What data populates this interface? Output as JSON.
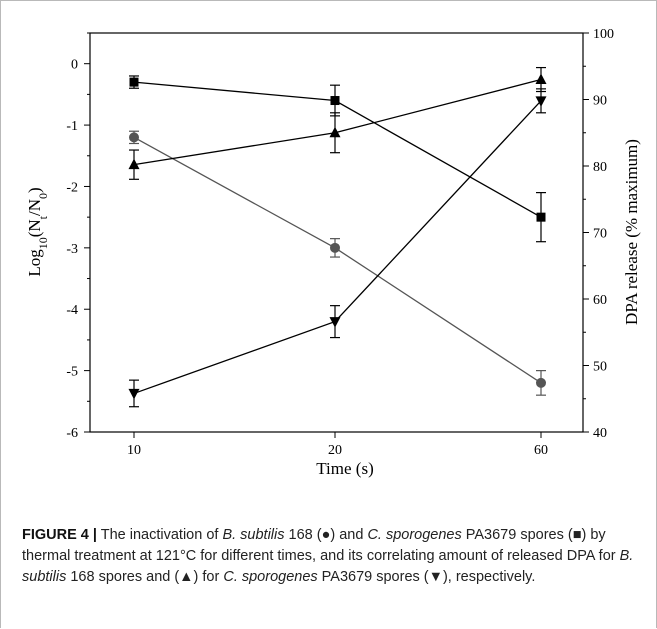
{
  "chart_data": {
    "type": "line",
    "categories": [
      "10",
      "20",
      "60"
    ],
    "xlabel": "Time (s)",
    "ylabel_left": "Log10(Nt/N0)",
    "ylabel_right": "DPA release (% maximum)",
    "ylim_left": [
      -6,
      0.5
    ],
    "ylim_right": [
      40,
      100
    ],
    "yticks_left": [
      "0",
      "-1",
      "-2",
      "-3",
      "-4",
      "-5",
      "-6"
    ],
    "yticks_right": [
      "40",
      "50",
      "60",
      "70",
      "80",
      "90",
      "100"
    ],
    "series": [
      {
        "axis": "left",
        "marker": "circle",
        "color": "#555555",
        "values": [
          -1.2,
          -3.0,
          -5.2
        ],
        "errors": [
          0.1,
          0.15,
          0.2
        ]
      },
      {
        "axis": "left",
        "marker": "square",
        "color": "#000000",
        "values": [
          -0.3,
          -0.6,
          -2.5
        ],
        "errors": [
          0.1,
          0.25,
          0.4
        ]
      },
      {
        "axis": "right",
        "marker": "triangle-up",
        "color": "#000000",
        "values": [
          80.2,
          85.0,
          93.0
        ],
        "errors": [
          2.2,
          3.0,
          1.8
        ]
      },
      {
        "axis": "right",
        "marker": "triangle-down",
        "color": "#000000",
        "values": [
          45.8,
          56.6,
          89.8
        ],
        "errors": [
          2.0,
          2.4,
          1.8
        ]
      }
    ]
  },
  "caption": {
    "label": "FIGURE 4 |",
    "parts": [
      {
        "t": " The inactivation of ",
        "i": false
      },
      {
        "t": "B. subtilis",
        "i": true
      },
      {
        "t": " 168 (●) and ",
        "i": false
      },
      {
        "t": "C. sporogenes",
        "i": true
      },
      {
        "t": " PA3679 spores (■) by thermal treatment at 121°C for different times, and its correlating amount of released DPA for ",
        "i": false
      },
      {
        "t": "B. subtilis",
        "i": true
      },
      {
        "t": " 168 spores and (▲) for ",
        "i": false
      },
      {
        "t": "C. sporogenes",
        "i": true
      },
      {
        "t": " PA3679 spores (▼), respectively.",
        "i": false
      }
    ]
  }
}
